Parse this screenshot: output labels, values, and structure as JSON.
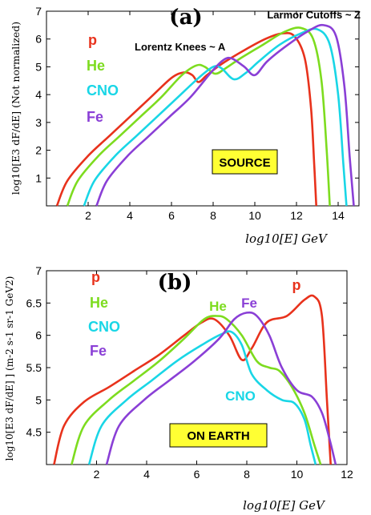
{
  "colors": {
    "p": "#e8321c",
    "He": "#7ddc1f",
    "CNO": "#19d6e6",
    "Fe": "#8a3fd6",
    "box": "#ffff33"
  },
  "chart_data": [
    {
      "type": "line",
      "panel_label": "(a)",
      "annotation_top": "Larmor Cutoffs ~ Z",
      "annotation_mid": "Lorentz Knees ~ A",
      "box_label": "SOURCE",
      "legend": [
        "p",
        "He",
        "CNO",
        "Fe"
      ],
      "xlabel": "log10[E] GeV",
      "ylabel": "log10[E3 dF/dE] (Not normalized)",
      "xlim": [
        0,
        15
      ],
      "ylim": [
        0,
        7
      ],
      "xticks": [
        "2",
        "4",
        "6",
        "8",
        "10",
        "12",
        "14"
      ],
      "yticks": [
        "1",
        "2",
        "3",
        "4",
        "5",
        "6",
        "7"
      ],
      "series": [
        {
          "name": "p",
          "x": [
            0.5,
            1,
            2,
            3,
            4,
            5,
            6,
            6.6,
            7.0,
            7.3,
            7.7,
            8.4,
            9.5,
            10.5,
            11.3,
            11.9,
            12.4,
            12.7,
            12.85,
            12.95
          ],
          "y": [
            0.0,
            0.9,
            1.8,
            2.5,
            3.2,
            3.9,
            4.6,
            4.8,
            4.7,
            4.45,
            4.7,
            5.1,
            5.6,
            6.0,
            6.2,
            6.1,
            5.3,
            3.5,
            1.5,
            0.0
          ]
        },
        {
          "name": "He",
          "x": [
            1.0,
            1.5,
            2.5,
            3.5,
            4.5,
            5.5,
            6.5,
            7.2,
            7.6,
            8.1,
            8.6,
            9.3,
            10.4,
            11.4,
            12.2,
            12.8,
            13.2,
            13.45,
            13.6
          ],
          "y": [
            0.0,
            0.9,
            1.8,
            2.5,
            3.2,
            3.9,
            4.7,
            5.05,
            5.0,
            4.75,
            4.95,
            5.3,
            5.8,
            6.25,
            6.4,
            6.0,
            4.5,
            2.0,
            0.0
          ]
        },
        {
          "name": "CNO",
          "x": [
            1.8,
            2.3,
            3.3,
            4.3,
            5.3,
            6.3,
            7.3,
            8.0,
            8.4,
            9.0,
            9.6,
            10.2,
            11.2,
            12.2,
            13.0,
            13.6,
            14.0,
            14.25,
            14.4
          ],
          "y": [
            0.0,
            0.9,
            1.8,
            2.5,
            3.2,
            3.9,
            4.6,
            5.0,
            4.95,
            4.55,
            4.8,
            5.2,
            5.8,
            6.2,
            6.35,
            5.8,
            4.0,
            1.5,
            0.0
          ]
        },
        {
          "name": "Fe",
          "x": [
            2.4,
            2.9,
            3.9,
            4.9,
            5.9,
            6.9,
            7.9,
            8.5,
            8.9,
            9.5,
            10.0,
            10.6,
            11.6,
            12.6,
            13.3,
            13.9,
            14.3,
            14.55,
            14.75
          ],
          "y": [
            0.0,
            0.9,
            1.8,
            2.5,
            3.2,
            3.9,
            4.8,
            5.25,
            5.3,
            5.0,
            4.7,
            5.2,
            5.8,
            6.3,
            6.5,
            6.1,
            4.3,
            1.8,
            0.0
          ]
        }
      ]
    },
    {
      "type": "line",
      "panel_label": "(b)",
      "box_label": "ON EARTH",
      "legend": [
        "p",
        "He",
        "CNO",
        "Fe"
      ],
      "curve_labels": [
        "He",
        "Fe",
        "p",
        "CNO"
      ],
      "xlabel": "log10[E] GeV",
      "ylabel": "log10[E3 dF/dE] ] (m-2 s-1 sr-1 GeV2)",
      "xlim": [
        0,
        12
      ],
      "ylim": [
        4,
        7
      ],
      "xticks": [
        "2",
        "4",
        "6",
        "8",
        "10",
        "12"
      ],
      "yticks": [
        "4.5",
        "5",
        "5.5",
        "6",
        "6.5",
        "7"
      ],
      "series": [
        {
          "name": "p",
          "x": [
            0.3,
            0.7,
            1.5,
            2.5,
            3.5,
            4.5,
            5.5,
            6.2,
            6.7,
            7.3,
            7.8,
            8.2,
            8.8,
            9.6,
            10.3,
            10.7,
            11.0,
            11.2,
            11.35
          ],
          "y": [
            4.0,
            4.6,
            4.97,
            5.2,
            5.45,
            5.7,
            6.0,
            6.2,
            6.25,
            6.0,
            5.62,
            5.8,
            6.2,
            6.3,
            6.55,
            6.6,
            6.3,
            5.0,
            4.0
          ]
        },
        {
          "name": "He",
          "x": [
            1.0,
            1.5,
            2.5,
            3.5,
            4.5,
            5.5,
            6.3,
            6.8,
            7.2,
            7.8,
            8.4,
            8.9,
            9.3,
            9.8,
            10.3,
            10.7,
            10.95
          ],
          "y": [
            4.0,
            4.6,
            5.0,
            5.3,
            5.6,
            5.95,
            6.25,
            6.3,
            6.25,
            6.0,
            5.6,
            5.5,
            5.45,
            5.2,
            4.8,
            4.3,
            4.0
          ]
        },
        {
          "name": "CNO",
          "x": [
            1.7,
            2.2,
            3.2,
            4.2,
            5.2,
            6.2,
            7.0,
            7.4,
            7.8,
            8.2,
            8.8,
            9.4,
            9.9,
            10.3,
            10.55,
            10.75
          ],
          "y": [
            4.0,
            4.6,
            5.0,
            5.3,
            5.6,
            5.85,
            6.02,
            6.05,
            5.85,
            5.4,
            5.15,
            5.0,
            4.95,
            4.7,
            4.3,
            4.0
          ]
        },
        {
          "name": "Fe",
          "x": [
            2.4,
            2.9,
            3.9,
            4.9,
            5.9,
            6.9,
            7.5,
            8.0,
            8.4,
            8.9,
            9.4,
            10.0,
            10.6,
            11.0,
            11.3,
            11.55
          ],
          "y": [
            4.0,
            4.6,
            5.0,
            5.3,
            5.6,
            5.95,
            6.25,
            6.35,
            6.3,
            6.0,
            5.5,
            5.15,
            5.05,
            4.8,
            4.4,
            4.0
          ]
        }
      ]
    }
  ]
}
